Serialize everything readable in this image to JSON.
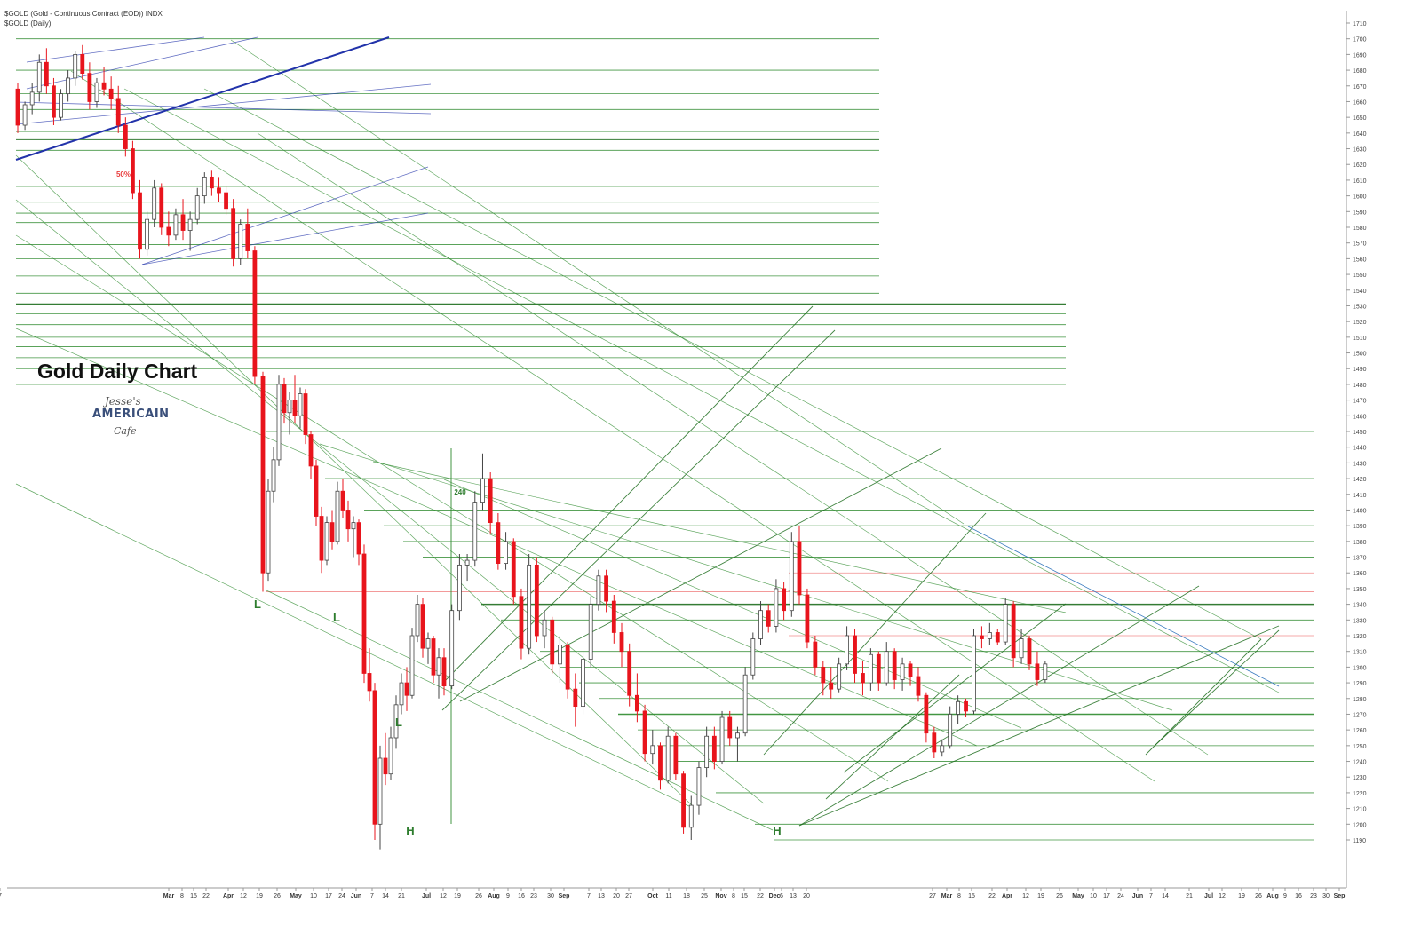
{
  "header": {
    "symbol_line": "$GOLD (Gold - Continuous Contract (EOD)) INDX",
    "period_line": "$GOLD (Daily)"
  },
  "overlay": {
    "title": "Gold Daily Chart",
    "logo_script": "Jesse's",
    "logo_brand": "AMERICAIN",
    "logo_cafe": "Cafe"
  },
  "colors": {
    "up_candle": "#ffffff",
    "down_candle": "#e8141c",
    "wick": "#444444",
    "green_line": "#2e8b2e",
    "dark_green": "#1f6e1f",
    "blue_line": "#2233aa",
    "red_line": "#f08080",
    "label_green": "#2e7d2e",
    "label_red": "#e83c3c"
  },
  "chart_data": {
    "type": "candlestick",
    "y_axis": {
      "min": 1180,
      "max": 1710,
      "ticks": [
        1190,
        1200,
        1210,
        1220,
        1230,
        1240,
        1250,
        1260,
        1270,
        1280,
        1290,
        1300,
        1310,
        1320,
        1330,
        1340,
        1350,
        1360,
        1370,
        1380,
        1390,
        1400,
        1410,
        1420,
        1430,
        1440,
        1450,
        1460,
        1470,
        1480,
        1490,
        1500,
        1510,
        1520,
        1530,
        1540,
        1550,
        1560,
        1570,
        1580,
        1590,
        1600,
        1610,
        1620,
        1630,
        1640,
        1650,
        1660,
        1670,
        1680,
        1690,
        1700,
        1710
      ]
    },
    "x_axis": {
      "ticks": [
        "Mar",
        "8",
        "15",
        "22",
        "Apr",
        "12",
        "19",
        "26",
        "May",
        "10",
        "17",
        "24",
        "Jun",
        "7",
        "14",
        "21",
        "Jul",
        "12",
        "19",
        "26",
        "Aug",
        "9",
        "16",
        "23",
        "30",
        "Sep",
        "7",
        "13",
        "20",
        "27",
        "Oct",
        "11",
        "18",
        "25",
        "Nov",
        "8",
        "15",
        "22",
        "Dec",
        "6",
        "13",
        "20",
        "27",
        "Mar",
        "8",
        "15",
        "22",
        "Apr",
        "12",
        "19",
        "26",
        "May",
        "10",
        "17",
        "24",
        "Jun",
        "7",
        "14",
        "21",
        "Jul",
        "12",
        "19",
        "26",
        "Aug",
        "9",
        "16",
        "23",
        "30",
        "Sep",
        "7"
      ]
    },
    "annotations": [
      {
        "text": "50%",
        "near_price": 1613
      },
      {
        "text": "240",
        "near_price": 1415
      },
      {
        "text": "L",
        "near_price": 1340
      },
      {
        "text": "L",
        "near_price": 1334
      },
      {
        "text": "L",
        "near_price": 1255
      },
      {
        "text": "H",
        "near_price": 1192
      },
      {
        "text": "H",
        "near_price": 1192
      }
    ],
    "horizontal_levels": [
      1700,
      1680,
      1665,
      1655,
      1641,
      1636,
      1629,
      1606,
      1596,
      1589,
      1583,
      1569,
      1560,
      1549,
      1538,
      1531,
      1525,
      1518,
      1510,
      1504,
      1497,
      1490,
      1480,
      1450,
      1420,
      1400,
      1390,
      1380,
      1370,
      1360,
      1348,
      1340,
      1330,
      1320,
      1310,
      1300,
      1290,
      1280,
      1270,
      1260,
      1250,
      1240,
      1220,
      1200,
      1190
    ],
    "candles": [
      {
        "o": 1668,
        "h": 1672,
        "l": 1640,
        "c": 1645
      },
      {
        "o": 1645,
        "h": 1660,
        "l": 1642,
        "c": 1658
      },
      {
        "o": 1658,
        "h": 1672,
        "l": 1652,
        "c": 1666
      },
      {
        "o": 1666,
        "h": 1690,
        "l": 1660,
        "c": 1685
      },
      {
        "o": 1685,
        "h": 1694,
        "l": 1665,
        "c": 1670
      },
      {
        "o": 1670,
        "h": 1675,
        "l": 1645,
        "c": 1650
      },
      {
        "o": 1650,
        "h": 1668,
        "l": 1648,
        "c": 1665
      },
      {
        "o": 1665,
        "h": 1680,
        "l": 1660,
        "c": 1675
      },
      {
        "o": 1675,
        "h": 1692,
        "l": 1670,
        "c": 1690
      },
      {
        "o": 1690,
        "h": 1696,
        "l": 1674,
        "c": 1678
      },
      {
        "o": 1678,
        "h": 1685,
        "l": 1655,
        "c": 1660
      },
      {
        "o": 1660,
        "h": 1675,
        "l": 1656,
        "c": 1672
      },
      {
        "o": 1672,
        "h": 1682,
        "l": 1664,
        "c": 1668
      },
      {
        "o": 1668,
        "h": 1676,
        "l": 1655,
        "c": 1662
      },
      {
        "o": 1662,
        "h": 1670,
        "l": 1640,
        "c": 1645
      },
      {
        "o": 1645,
        "h": 1650,
        "l": 1625,
        "c": 1630
      },
      {
        "o": 1630,
        "h": 1635,
        "l": 1598,
        "c": 1602
      },
      {
        "o": 1602,
        "h": 1610,
        "l": 1560,
        "c": 1566
      },
      {
        "o": 1566,
        "h": 1590,
        "l": 1562,
        "c": 1585
      },
      {
        "o": 1585,
        "h": 1610,
        "l": 1580,
        "c": 1605
      },
      {
        "o": 1605,
        "h": 1608,
        "l": 1575,
        "c": 1580
      },
      {
        "o": 1580,
        "h": 1590,
        "l": 1568,
        "c": 1575
      },
      {
        "o": 1575,
        "h": 1592,
        "l": 1572,
        "c": 1588
      },
      {
        "o": 1588,
        "h": 1598,
        "l": 1572,
        "c": 1578
      },
      {
        "o": 1578,
        "h": 1590,
        "l": 1565,
        "c": 1585
      },
      {
        "o": 1585,
        "h": 1605,
        "l": 1582,
        "c": 1600
      },
      {
        "o": 1600,
        "h": 1615,
        "l": 1595,
        "c": 1612
      },
      {
        "o": 1612,
        "h": 1616,
        "l": 1600,
        "c": 1605
      },
      {
        "o": 1605,
        "h": 1612,
        "l": 1596,
        "c": 1602
      },
      {
        "o": 1602,
        "h": 1606,
        "l": 1588,
        "c": 1592
      },
      {
        "o": 1592,
        "h": 1598,
        "l": 1555,
        "c": 1560
      },
      {
        "o": 1560,
        "h": 1585,
        "l": 1556,
        "c": 1582
      },
      {
        "o": 1582,
        "h": 1592,
        "l": 1560,
        "c": 1565
      },
      {
        "o": 1565,
        "h": 1568,
        "l": 1480,
        "c": 1485
      },
      {
        "o": 1485,
        "h": 1488,
        "l": 1348,
        "c": 1360
      },
      {
        "o": 1360,
        "h": 1420,
        "l": 1355,
        "c": 1412
      },
      {
        "o": 1412,
        "h": 1440,
        "l": 1405,
        "c": 1432
      },
      {
        "o": 1432,
        "h": 1486,
        "l": 1428,
        "c": 1480
      },
      {
        "o": 1480,
        "h": 1484,
        "l": 1455,
        "c": 1462
      },
      {
        "o": 1462,
        "h": 1475,
        "l": 1448,
        "c": 1470
      },
      {
        "o": 1470,
        "h": 1486,
        "l": 1455,
        "c": 1460
      },
      {
        "o": 1460,
        "h": 1478,
        "l": 1452,
        "c": 1474
      },
      {
        "o": 1474,
        "h": 1477,
        "l": 1442,
        "c": 1448
      },
      {
        "o": 1448,
        "h": 1450,
        "l": 1420,
        "c": 1428
      },
      {
        "o": 1428,
        "h": 1432,
        "l": 1390,
        "c": 1396
      },
      {
        "o": 1396,
        "h": 1402,
        "l": 1360,
        "c": 1368
      },
      {
        "o": 1368,
        "h": 1396,
        "l": 1365,
        "c": 1392
      },
      {
        "o": 1392,
        "h": 1400,
        "l": 1375,
        "c": 1380
      },
      {
        "o": 1380,
        "h": 1418,
        "l": 1378,
        "c": 1412
      },
      {
        "o": 1412,
        "h": 1420,
        "l": 1395,
        "c": 1400
      },
      {
        "o": 1400,
        "h": 1406,
        "l": 1380,
        "c": 1388
      },
      {
        "o": 1388,
        "h": 1396,
        "l": 1370,
        "c": 1392
      },
      {
        "o": 1392,
        "h": 1394,
        "l": 1365,
        "c": 1372
      },
      {
        "o": 1372,
        "h": 1378,
        "l": 1290,
        "c": 1296
      },
      {
        "o": 1296,
        "h": 1312,
        "l": 1278,
        "c": 1285
      },
      {
        "o": 1285,
        "h": 1290,
        "l": 1190,
        "c": 1200
      },
      {
        "o": 1200,
        "h": 1250,
        "l": 1184,
        "c": 1242
      },
      {
        "o": 1242,
        "h": 1258,
        "l": 1225,
        "c": 1232
      },
      {
        "o": 1232,
        "h": 1262,
        "l": 1228,
        "c": 1255
      },
      {
        "o": 1255,
        "h": 1282,
        "l": 1248,
        "c": 1276
      },
      {
        "o": 1276,
        "h": 1296,
        "l": 1270,
        "c": 1290
      },
      {
        "o": 1290,
        "h": 1300,
        "l": 1272,
        "c": 1282
      },
      {
        "o": 1282,
        "h": 1325,
        "l": 1280,
        "c": 1320
      },
      {
        "o": 1320,
        "h": 1346,
        "l": 1316,
        "c": 1340
      },
      {
        "o": 1340,
        "h": 1344,
        "l": 1306,
        "c": 1312
      },
      {
        "o": 1312,
        "h": 1322,
        "l": 1302,
        "c": 1318
      },
      {
        "o": 1318,
        "h": 1320,
        "l": 1290,
        "c": 1295
      },
      {
        "o": 1295,
        "h": 1312,
        "l": 1280,
        "c": 1306
      },
      {
        "o": 1306,
        "h": 1312,
        "l": 1282,
        "c": 1288
      },
      {
        "o": 1288,
        "h": 1340,
        "l": 1286,
        "c": 1336
      },
      {
        "o": 1336,
        "h": 1372,
        "l": 1330,
        "c": 1365
      },
      {
        "o": 1365,
        "h": 1372,
        "l": 1355,
        "c": 1368
      },
      {
        "o": 1368,
        "h": 1412,
        "l": 1364,
        "c": 1405
      },
      {
        "o": 1405,
        "h": 1436,
        "l": 1400,
        "c": 1420
      },
      {
        "o": 1420,
        "h": 1424,
        "l": 1385,
        "c": 1392
      },
      {
        "o": 1392,
        "h": 1398,
        "l": 1362,
        "c": 1366
      },
      {
        "o": 1366,
        "h": 1386,
        "l": 1362,
        "c": 1380
      },
      {
        "o": 1380,
        "h": 1382,
        "l": 1340,
        "c": 1345
      },
      {
        "o": 1345,
        "h": 1350,
        "l": 1305,
        "c": 1312
      },
      {
        "o": 1312,
        "h": 1372,
        "l": 1308,
        "c": 1365
      },
      {
        "o": 1365,
        "h": 1370,
        "l": 1316,
        "c": 1320
      },
      {
        "o": 1320,
        "h": 1336,
        "l": 1312,
        "c": 1330
      },
      {
        "o": 1330,
        "h": 1332,
        "l": 1296,
        "c": 1302
      },
      {
        "o": 1302,
        "h": 1320,
        "l": 1290,
        "c": 1314
      },
      {
        "o": 1314,
        "h": 1316,
        "l": 1280,
        "c": 1286
      },
      {
        "o": 1286,
        "h": 1296,
        "l": 1262,
        "c": 1275
      },
      {
        "o": 1275,
        "h": 1310,
        "l": 1270,
        "c": 1305
      },
      {
        "o": 1305,
        "h": 1345,
        "l": 1300,
        "c": 1340
      },
      {
        "o": 1340,
        "h": 1362,
        "l": 1336,
        "c": 1358
      },
      {
        "o": 1358,
        "h": 1362,
        "l": 1335,
        "c": 1342
      },
      {
        "o": 1342,
        "h": 1346,
        "l": 1315,
        "c": 1322
      },
      {
        "o": 1322,
        "h": 1328,
        "l": 1300,
        "c": 1310
      },
      {
        "o": 1310,
        "h": 1315,
        "l": 1275,
        "c": 1282
      },
      {
        "o": 1282,
        "h": 1296,
        "l": 1265,
        "c": 1272
      },
      {
        "o": 1272,
        "h": 1276,
        "l": 1240,
        "c": 1245
      },
      {
        "o": 1245,
        "h": 1260,
        "l": 1238,
        "c": 1250
      },
      {
        "o": 1250,
        "h": 1252,
        "l": 1222,
        "c": 1228
      },
      {
        "o": 1228,
        "h": 1262,
        "l": 1226,
        "c": 1256
      },
      {
        "o": 1256,
        "h": 1258,
        "l": 1228,
        "c": 1232
      },
      {
        "o": 1232,
        "h": 1234,
        "l": 1194,
        "c": 1198
      },
      {
        "o": 1198,
        "h": 1218,
        "l": 1190,
        "c": 1212
      },
      {
        "o": 1212,
        "h": 1240,
        "l": 1206,
        "c": 1236
      },
      {
        "o": 1236,
        "h": 1262,
        "l": 1230,
        "c": 1256
      },
      {
        "o": 1256,
        "h": 1262,
        "l": 1235,
        "c": 1240
      },
      {
        "o": 1240,
        "h": 1272,
        "l": 1238,
        "c": 1268
      },
      {
        "o": 1268,
        "h": 1272,
        "l": 1250,
        "c": 1255
      },
      {
        "o": 1255,
        "h": 1262,
        "l": 1240,
        "c": 1258
      },
      {
        "o": 1258,
        "h": 1300,
        "l": 1256,
        "c": 1295
      },
      {
        "o": 1295,
        "h": 1322,
        "l": 1292,
        "c": 1318
      },
      {
        "o": 1318,
        "h": 1342,
        "l": 1314,
        "c": 1336
      },
      {
        "o": 1336,
        "h": 1340,
        "l": 1322,
        "c": 1326
      },
      {
        "o": 1326,
        "h": 1356,
        "l": 1322,
        "c": 1350
      },
      {
        "o": 1350,
        "h": 1354,
        "l": 1330,
        "c": 1336
      },
      {
        "o": 1336,
        "h": 1386,
        "l": 1332,
        "c": 1380
      },
      {
        "o": 1380,
        "h": 1390,
        "l": 1340,
        "c": 1346
      },
      {
        "o": 1346,
        "h": 1350,
        "l": 1312,
        "c": 1316
      },
      {
        "o": 1316,
        "h": 1320,
        "l": 1295,
        "c": 1300
      },
      {
        "o": 1300,
        "h": 1304,
        "l": 1282,
        "c": 1290
      },
      {
        "o": 1290,
        "h": 1300,
        "l": 1280,
        "c": 1286
      },
      {
        "o": 1286,
        "h": 1306,
        "l": 1284,
        "c": 1302
      },
      {
        "o": 1302,
        "h": 1326,
        "l": 1298,
        "c": 1320
      },
      {
        "o": 1320,
        "h": 1324,
        "l": 1290,
        "c": 1296
      },
      {
        "o": 1296,
        "h": 1304,
        "l": 1282,
        "c": 1290
      },
      {
        "o": 1290,
        "h": 1312,
        "l": 1285,
        "c": 1308
      },
      {
        "o": 1308,
        "h": 1310,
        "l": 1285,
        "c": 1290
      },
      {
        "o": 1290,
        "h": 1316,
        "l": 1288,
        "c": 1310
      },
      {
        "o": 1310,
        "h": 1312,
        "l": 1286,
        "c": 1292
      },
      {
        "o": 1292,
        "h": 1306,
        "l": 1285,
        "c": 1302
      },
      {
        "o": 1302,
        "h": 1304,
        "l": 1288,
        "c": 1294
      },
      {
        "o": 1294,
        "h": 1300,
        "l": 1278,
        "c": 1282
      },
      {
        "o": 1282,
        "h": 1284,
        "l": 1252,
        "c": 1258
      },
      {
        "o": 1258,
        "h": 1262,
        "l": 1242,
        "c": 1246
      },
      {
        "o": 1246,
        "h": 1254,
        "l": 1243,
        "c": 1250
      },
      {
        "o": 1250,
        "h": 1275,
        "l": 1248,
        "c": 1270
      },
      {
        "o": 1270,
        "h": 1282,
        "l": 1264,
        "c": 1278
      },
      {
        "o": 1278,
        "h": 1280,
        "l": 1268,
        "c": 1272
      },
      {
        "o": 1272,
        "h": 1324,
        "l": 1270,
        "c": 1320
      },
      {
        "o": 1320,
        "h": 1326,
        "l": 1312,
        "c": 1318
      },
      {
        "o": 1318,
        "h": 1328,
        "l": 1314,
        "c": 1322
      },
      {
        "o": 1322,
        "h": 1324,
        "l": 1314,
        "c": 1316
      },
      {
        "o": 1316,
        "h": 1344,
        "l": 1314,
        "c": 1340
      },
      {
        "o": 1340,
        "h": 1342,
        "l": 1300,
        "c": 1306
      },
      {
        "o": 1306,
        "h": 1324,
        "l": 1302,
        "c": 1318
      },
      {
        "o": 1318,
        "h": 1320,
        "l": 1298,
        "c": 1302
      },
      {
        "o": 1302,
        "h": 1310,
        "l": 1288,
        "c": 1292
      },
      {
        "o": 1292,
        "h": 1304,
        "l": 1290,
        "c": 1302
      }
    ]
  }
}
